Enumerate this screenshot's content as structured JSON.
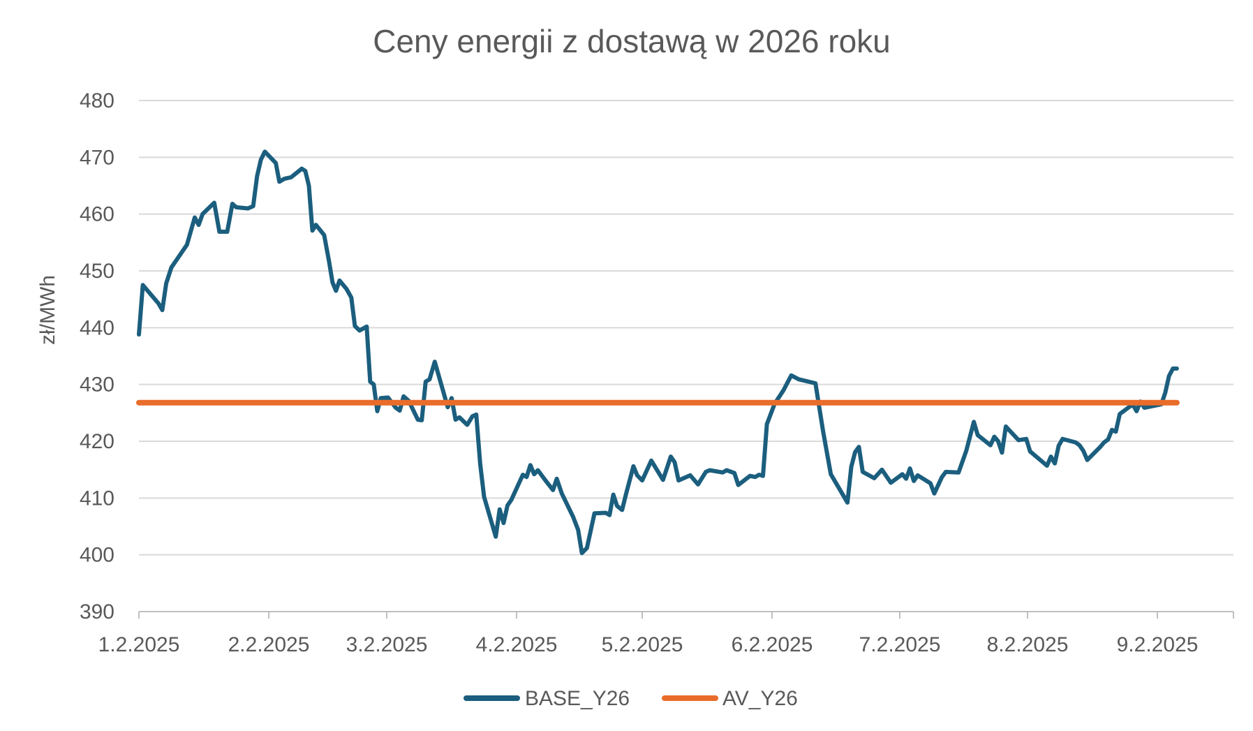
{
  "chart_data": {
    "type": "line",
    "title": "Ceny energii z dostawą w 2026 roku",
    "ylabel": "zł/MWh",
    "xlabel": "",
    "ylim": [
      390,
      480
    ],
    "yticks": [
      390,
      400,
      410,
      420,
      430,
      440,
      450,
      460,
      470,
      480
    ],
    "xticks": [
      "1.2.2025",
      "2.2.2025",
      "3.2.2025",
      "4.2.2025",
      "5.2.2025",
      "6.2.2025",
      "7.2.2025",
      "8.2.2025",
      "9.2.2025"
    ],
    "grid": true,
    "legend": "bottom",
    "series": [
      {
        "name": "BASE_Y26",
        "color": "#1b5e7e",
        "points": [
          [
            0.0,
            438.8
          ],
          [
            0.03,
            447.5
          ],
          [
            0.15,
            444.3
          ],
          [
            0.18,
            443.1
          ],
          [
            0.21,
            447.8
          ],
          [
            0.25,
            450.6
          ],
          [
            0.37,
            454.6
          ],
          [
            0.43,
            459.4
          ],
          [
            0.46,
            458.1
          ],
          [
            0.49,
            460.0
          ],
          [
            0.58,
            462.0
          ],
          [
            0.62,
            456.9
          ],
          [
            0.68,
            456.9
          ],
          [
            0.72,
            461.8
          ],
          [
            0.75,
            461.2
          ],
          [
            0.84,
            461.0
          ],
          [
            0.88,
            461.4
          ],
          [
            0.91,
            466.7
          ],
          [
            0.94,
            469.6
          ],
          [
            0.97,
            471.0
          ],
          [
            1.06,
            469.0
          ],
          [
            1.09,
            465.7
          ],
          [
            1.13,
            466.2
          ],
          [
            1.19,
            466.5
          ],
          [
            1.28,
            468.0
          ],
          [
            1.31,
            467.6
          ],
          [
            1.34,
            465.0
          ],
          [
            1.37,
            457.1
          ],
          [
            1.4,
            458.1
          ],
          [
            1.47,
            456.3
          ],
          [
            1.51,
            451.8
          ],
          [
            1.54,
            448.0
          ],
          [
            1.57,
            446.5
          ],
          [
            1.6,
            448.3
          ],
          [
            1.66,
            446.8
          ],
          [
            1.7,
            445.3
          ],
          [
            1.73,
            440.3
          ],
          [
            1.77,
            439.5
          ],
          [
            1.83,
            440.2
          ],
          [
            1.86,
            430.5
          ],
          [
            1.89,
            430.0
          ],
          [
            1.92,
            425.3
          ],
          [
            1.95,
            427.6
          ],
          [
            2.01,
            427.7
          ],
          [
            2.07,
            425.9
          ],
          [
            2.1,
            425.4
          ],
          [
            2.13,
            427.9
          ],
          [
            2.17,
            427.1
          ],
          [
            2.24,
            423.8
          ],
          [
            2.27,
            423.7
          ],
          [
            2.3,
            430.5
          ],
          [
            2.33,
            430.9
          ],
          [
            2.37,
            434.0
          ],
          [
            2.47,
            426.0
          ],
          [
            2.5,
            427.6
          ],
          [
            2.53,
            423.8
          ],
          [
            2.56,
            424.2
          ],
          [
            2.62,
            422.9
          ],
          [
            2.66,
            424.4
          ],
          [
            2.69,
            424.7
          ],
          [
            2.72,
            416.0
          ],
          [
            2.75,
            410.2
          ],
          [
            2.84,
            403.2
          ],
          [
            2.87,
            408.0
          ],
          [
            2.9,
            405.6
          ],
          [
            2.93,
            408.7
          ],
          [
            2.96,
            409.7
          ],
          [
            3.05,
            414.1
          ],
          [
            3.08,
            413.7
          ],
          [
            3.11,
            415.8
          ],
          [
            3.14,
            414.2
          ],
          [
            3.17,
            414.9
          ],
          [
            3.23,
            413.1
          ],
          [
            3.29,
            411.4
          ],
          [
            3.32,
            413.4
          ],
          [
            3.36,
            410.8
          ],
          [
            3.45,
            406.7
          ],
          [
            3.49,
            404.4
          ],
          [
            3.52,
            400.3
          ],
          [
            3.56,
            401.2
          ],
          [
            3.62,
            407.3
          ],
          [
            3.71,
            407.4
          ],
          [
            3.74,
            407.0
          ],
          [
            3.77,
            410.6
          ],
          [
            3.8,
            408.6
          ],
          [
            3.84,
            407.9
          ],
          [
            3.87,
            410.6
          ],
          [
            3.93,
            415.6
          ],
          [
            3.96,
            414.0
          ],
          [
            4.0,
            413.1
          ],
          [
            4.07,
            416.6
          ],
          [
            4.16,
            413.2
          ],
          [
            4.22,
            417.3
          ],
          [
            4.25,
            416.3
          ],
          [
            4.28,
            413.1
          ],
          [
            4.37,
            414.0
          ],
          [
            4.43,
            412.4
          ],
          [
            4.49,
            414.6
          ],
          [
            4.52,
            414.9
          ],
          [
            4.62,
            414.5
          ],
          [
            4.65,
            414.9
          ],
          [
            4.71,
            414.4
          ],
          [
            4.74,
            412.3
          ],
          [
            4.83,
            413.9
          ],
          [
            4.87,
            413.7
          ],
          [
            4.9,
            414.1
          ],
          [
            4.93,
            413.9
          ],
          [
            4.96,
            423.0
          ],
          [
            5.02,
            426.6
          ],
          [
            5.09,
            429.0
          ],
          [
            5.15,
            431.6
          ],
          [
            5.21,
            430.9
          ],
          [
            5.34,
            430.2
          ],
          [
            5.4,
            421.7
          ],
          [
            5.46,
            414.2
          ],
          [
            5.59,
            409.2
          ],
          [
            5.62,
            415.5
          ],
          [
            5.65,
            418.1
          ],
          [
            5.68,
            419.0
          ],
          [
            5.71,
            414.6
          ],
          [
            5.8,
            413.5
          ],
          [
            5.86,
            415.0
          ],
          [
            5.93,
            412.7
          ],
          [
            6.02,
            414.2
          ],
          [
            6.05,
            413.4
          ],
          [
            6.08,
            415.2
          ],
          [
            6.11,
            413.0
          ],
          [
            6.14,
            414.0
          ],
          [
            6.24,
            412.6
          ],
          [
            6.27,
            410.8
          ],
          [
            6.33,
            413.7
          ],
          [
            6.36,
            414.6
          ],
          [
            6.46,
            414.5
          ],
          [
            6.52,
            418.3
          ],
          [
            6.58,
            423.4
          ],
          [
            6.61,
            421.1
          ],
          [
            6.71,
            419.3
          ],
          [
            6.74,
            420.8
          ],
          [
            6.77,
            420.0
          ],
          [
            6.8,
            418.0
          ],
          [
            6.83,
            422.6
          ],
          [
            6.93,
            420.2
          ],
          [
            6.99,
            420.4
          ],
          [
            7.02,
            418.2
          ],
          [
            7.15,
            415.7
          ],
          [
            7.18,
            417.3
          ],
          [
            7.21,
            416.1
          ],
          [
            7.24,
            419.2
          ],
          [
            7.27,
            420.4
          ],
          [
            7.37,
            419.8
          ],
          [
            7.4,
            419.3
          ],
          [
            7.43,
            418.3
          ],
          [
            7.46,
            416.7
          ],
          [
            7.56,
            419.0
          ],
          [
            7.59,
            419.8
          ],
          [
            7.62,
            420.3
          ],
          [
            7.65,
            422.0
          ],
          [
            7.68,
            421.7
          ],
          [
            7.71,
            424.8
          ],
          [
            7.81,
            426.5
          ],
          [
            7.84,
            425.3
          ],
          [
            7.87,
            427.0
          ],
          [
            7.9,
            425.9
          ],
          [
            8.03,
            426.5
          ],
          [
            8.06,
            428.5
          ],
          [
            8.09,
            431.5
          ],
          [
            8.12,
            432.8
          ],
          [
            8.15,
            432.8
          ]
        ]
      },
      {
        "name": "AV_Y26",
        "color": "#e96c2a",
        "points": [
          [
            0.0,
            426.8
          ],
          [
            8.15,
            426.8
          ]
        ]
      }
    ]
  }
}
